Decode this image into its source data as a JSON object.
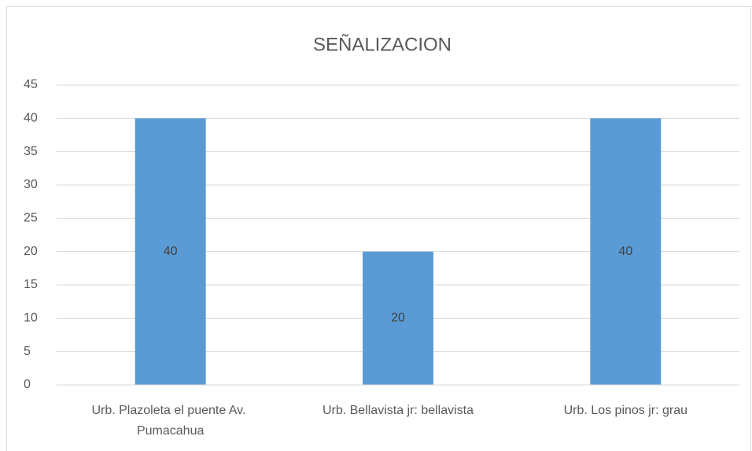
{
  "chart_data": {
    "type": "bar",
    "title": "SEÑALIZACION",
    "categories": [
      "Urb. Plazoleta el puente Av. Pumacahua",
      "Urb. Bellavista jr: bellavista",
      "Urb. Los pinos jr: grau"
    ],
    "values": [
      40,
      20,
      40
    ],
    "color": "#5b9bd5",
    "ylim": [
      0,
      45
    ],
    "yticks": [
      0,
      5,
      10,
      15,
      20,
      25,
      30,
      35,
      40,
      45
    ],
    "grid": true,
    "data_labels": true
  }
}
